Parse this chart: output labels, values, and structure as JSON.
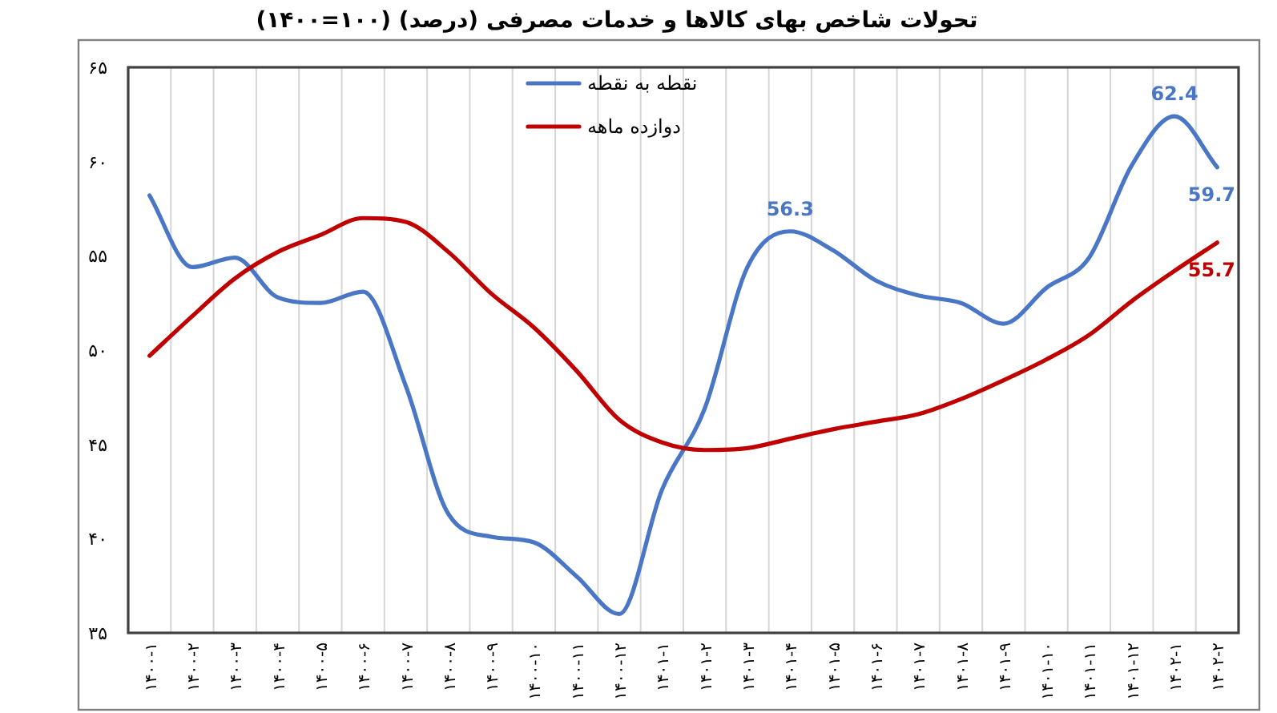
{
  "chart_data": {
    "type": "line",
    "title": "تحولات شاخص بهای کالاها و خدمات مصرفی (درصد) (۱۰۰=۱۴۰۰)",
    "categories": [
      "۱۴۰۰-۱",
      "۱۴۰۰-۲",
      "۱۴۰۰-۳",
      "۱۴۰۰-۴",
      "۱۴۰۰-۵",
      "۱۴۰۰-۶",
      "۱۴۰۰-۷",
      "۱۴۰۰-۸",
      "۱۴۰۰-۹",
      "۱۴۰۰-۱۰",
      "۱۴۰۰-۱۱",
      "۱۴۰۰-۱۲",
      "۱۴۰۱-۱",
      "۱۴۰۱-۲",
      "۱۴۰۱-۳",
      "۱۴۰۱-۴",
      "۱۴۰۱-۵",
      "۱۴۰۱-۶",
      "۱۴۰۱-۷",
      "۱۴۰۱-۸",
      "۱۴۰۱-۹",
      "۱۴۰۱-۱۰",
      "۱۴۰۱-۱۱",
      "۱۴۰۱-۱۲",
      "۱۴۰۲-۱",
      "۱۴۰۲-۲"
    ],
    "series": [
      {
        "name": "نقطه به نقطه",
        "color": "#4a76c6",
        "values": [
          58.2,
          54.4,
          54.9,
          52.8,
          52.5,
          53.1,
          48.1,
          41.3,
          40.1,
          39.8,
          38.0,
          36.0,
          42.6,
          46.9,
          54.4,
          56.3,
          55.3,
          53.7,
          52.9,
          52.5,
          51.4,
          53.3,
          54.9,
          59.8,
          62.4,
          59.7
        ],
        "value_labels": [
          null,
          null,
          null,
          null,
          null,
          null,
          null,
          null,
          null,
          null,
          null,
          null,
          null,
          null,
          null,
          "56.3",
          null,
          null,
          null,
          null,
          null,
          null,
          null,
          null,
          "62.4",
          "59.7"
        ]
      },
      {
        "name": "دوازده ماهه",
        "color": "#c00000",
        "values": [
          49.7,
          51.8,
          53.8,
          55.2,
          56.1,
          57.0,
          56.8,
          55.2,
          53.0,
          51.2,
          48.9,
          46.3,
          45.1,
          44.7,
          44.8,
          45.3,
          45.8,
          46.2,
          46.6,
          47.4,
          48.4,
          49.5,
          50.8,
          52.6,
          54.2,
          55.7
        ],
        "value_labels": [
          null,
          null,
          null,
          null,
          null,
          null,
          null,
          null,
          null,
          null,
          null,
          null,
          null,
          null,
          null,
          null,
          null,
          null,
          null,
          null,
          null,
          null,
          null,
          null,
          null,
          "55.7"
        ]
      }
    ],
    "ylim": [
      35,
      65
    ],
    "yticks": [
      {
        "value": 35,
        "label": "۳۵"
      },
      {
        "value": 40,
        "label": "۴۰"
      },
      {
        "value": 45,
        "label": "۴۵"
      },
      {
        "value": 50,
        "label": "۵۰"
      },
      {
        "value": 55,
        "label": "۵۵"
      },
      {
        "value": 60,
        "label": "۶۰"
      },
      {
        "value": 65,
        "label": "۶۵"
      }
    ],
    "grid": "x",
    "legend": "top"
  }
}
